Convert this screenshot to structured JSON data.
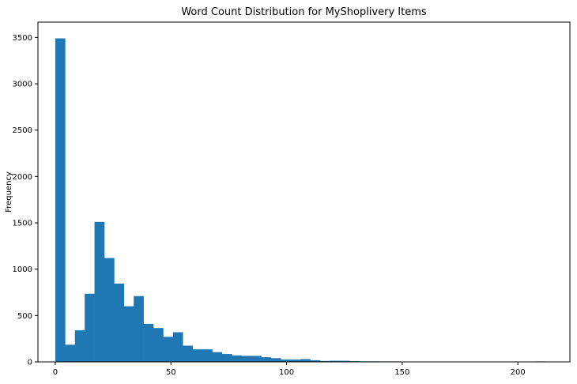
{
  "chart_data": {
    "type": "bar",
    "title": "Word Count Distribution for MyShoplivery Items",
    "xlabel": "",
    "ylabel": "Frequency",
    "xlim": [
      -7.5,
      222.5
    ],
    "ylim": [
      0,
      3665
    ],
    "xticks": [
      0,
      50,
      100,
      150,
      200
    ],
    "yticks": [
      0,
      500,
      1000,
      1500,
      2000,
      2500,
      3000,
      3500
    ],
    "bin_start": 0,
    "bin_width": 4.24,
    "series": [
      {
        "color": "#1f77b4",
        "values": [
          3490,
          185,
          340,
          735,
          1510,
          1120,
          845,
          600,
          710,
          410,
          365,
          270,
          320,
          175,
          135,
          135,
          105,
          85,
          70,
          65,
          65,
          50,
          40,
          25,
          25,
          30,
          18,
          10,
          12,
          12,
          8,
          6,
          6,
          5,
          5,
          4,
          4,
          3,
          3,
          3,
          3,
          2,
          2,
          1,
          1,
          1,
          1,
          1,
          1,
          5
        ]
      }
    ]
  }
}
